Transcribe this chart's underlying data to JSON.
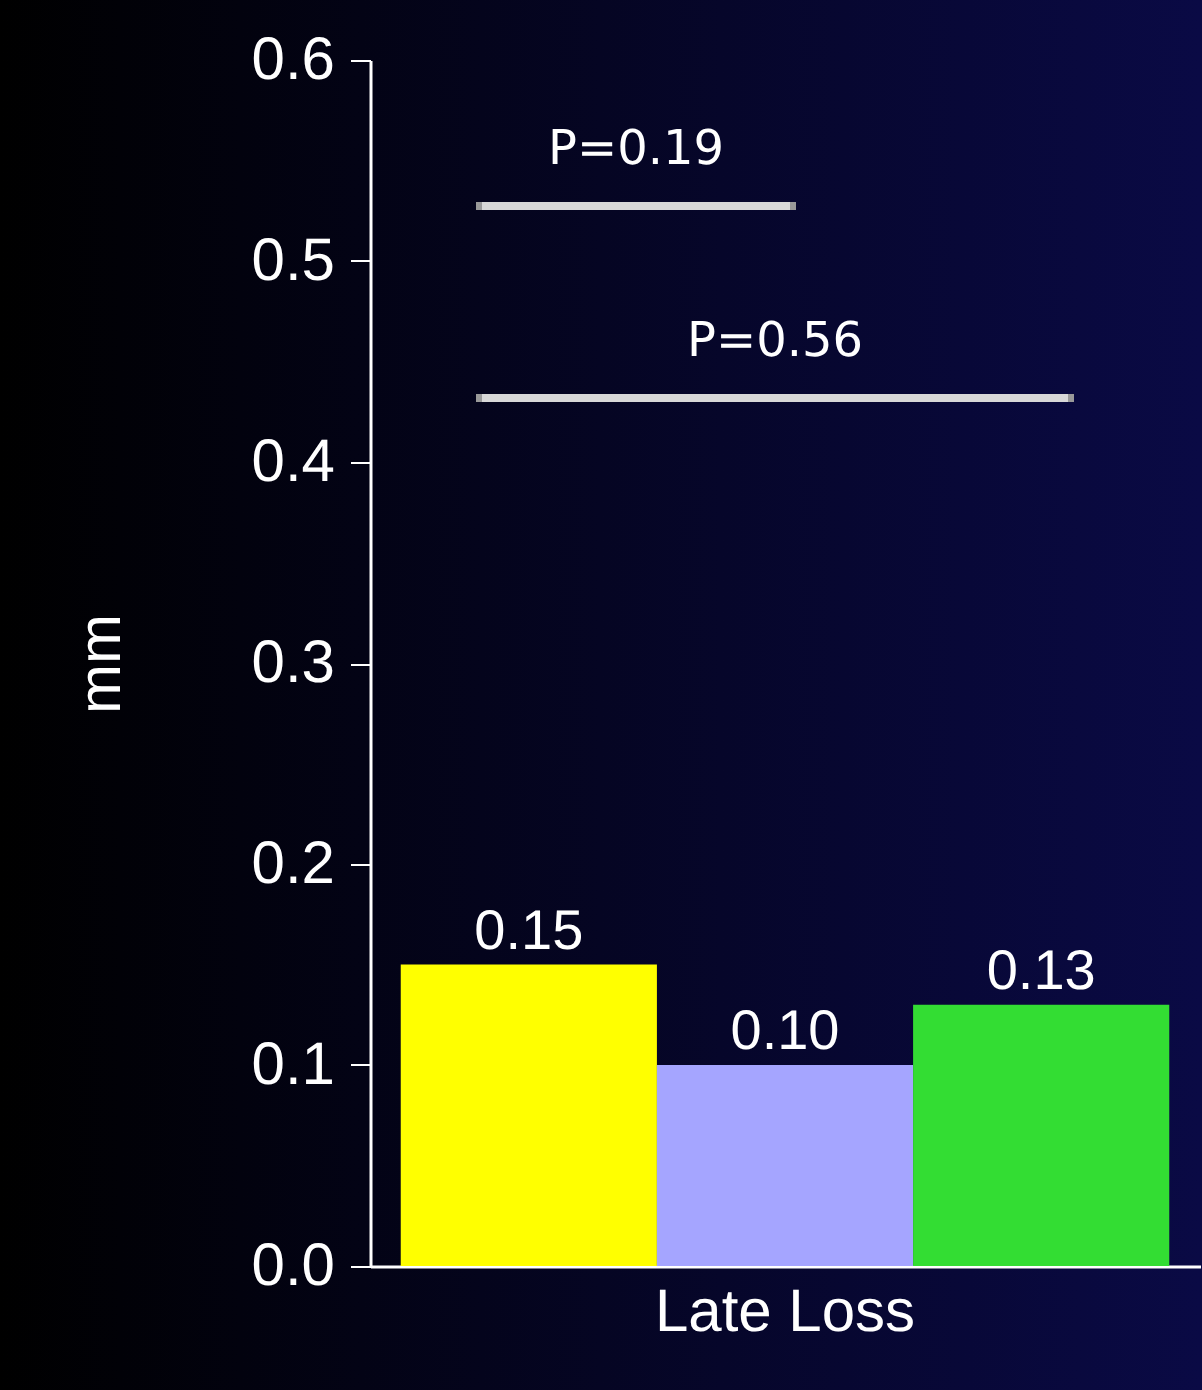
{
  "chart_data": {
    "type": "bar",
    "ylabel": "mm",
    "categories": [
      null,
      "Late Loss",
      null
    ],
    "values": [
      0.15,
      0.1,
      0.13
    ],
    "colors": [
      "#ffff00",
      "#a5a5ff",
      "#33dd33"
    ],
    "value_labels": [
      "0.15",
      "0.10",
      "0.13"
    ],
    "ylim": [
      0,
      0.6
    ],
    "yticks": [
      {
        "value": 0,
        "label": "0.0"
      },
      {
        "value": 0.1,
        "label": "0.1"
      },
      {
        "value": 0.2,
        "label": "0.2"
      },
      {
        "value": 0.3,
        "label": "0.3"
      },
      {
        "value": 0.4,
        "label": "0.4"
      },
      {
        "value": 0.5,
        "label": "0.5"
      },
      {
        "value": 0.6,
        "label": "0.6"
      }
    ],
    "annotations": [
      "P=0.19",
      "P=0.56"
    ],
    "grid": false,
    "legend": false
  }
}
